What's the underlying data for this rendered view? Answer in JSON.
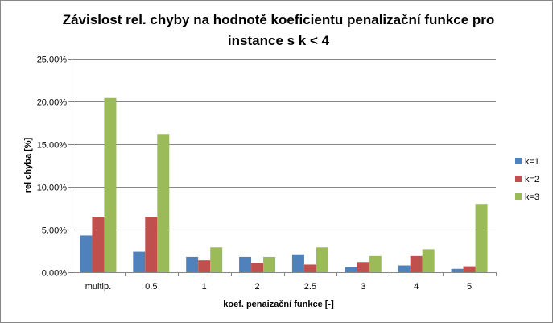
{
  "chart_data": {
    "type": "bar",
    "title_lines": [
      "Závislost rel. chyby na hodnotě koeficientu penalizační funkce pro",
      "instance s k < 4"
    ],
    "xlabel": "koef. penaizační  funkce [-]",
    "ylabel": "rel chyba [%]",
    "ylim": [
      0,
      25
    ],
    "yticks": [
      0,
      5,
      10,
      15,
      20,
      25
    ],
    "ytick_labels": [
      "0.00%",
      "5.00%",
      "10.00%",
      "15.00%",
      "20.00%",
      "25.00%"
    ],
    "grid": true,
    "legend_position": "right",
    "categories": [
      "multip.",
      "0.5",
      "1",
      "2",
      "2.5",
      "3",
      "4",
      "5"
    ],
    "series": [
      {
        "name": "k=1",
        "color": "#4F81BD",
        "values": [
          4.3,
          2.4,
          1.8,
          1.8,
          2.1,
          0.6,
          0.8,
          0.4
        ]
      },
      {
        "name": "k=2",
        "color": "#C0504D",
        "values": [
          6.5,
          6.5,
          1.4,
          1.1,
          0.9,
          1.2,
          1.9,
          0.7
        ]
      },
      {
        "name": "k=3",
        "color": "#9BBB59",
        "values": [
          20.4,
          16.2,
          2.9,
          1.8,
          2.9,
          1.9,
          2.7,
          8.0
        ]
      }
    ]
  }
}
